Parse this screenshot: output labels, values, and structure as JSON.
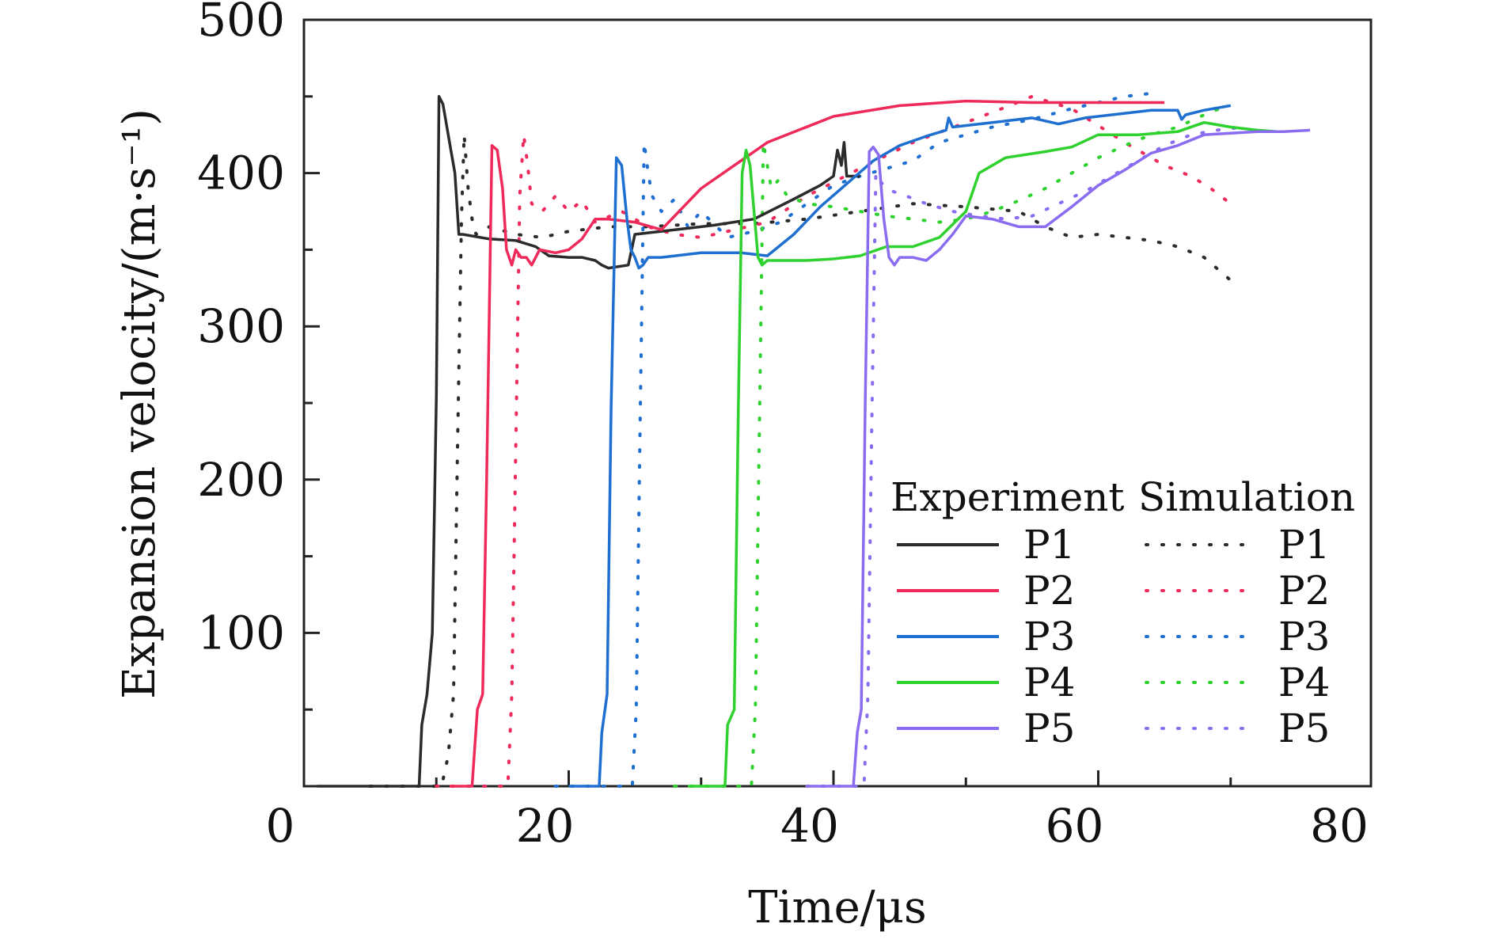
{
  "chart_data": {
    "type": "line",
    "xlabel": "Time/μs",
    "ylabel": "Expansion velocity/(m·s⁻¹)",
    "xlim": [
      0,
      80
    ],
    "ylim": [
      0,
      500
    ],
    "xticks": [
      0,
      20,
      40,
      60,
      80
    ],
    "yticks": [
      100,
      200,
      300,
      400,
      500
    ],
    "grid": false,
    "legend_position": "lower-right",
    "legend_headers": {
      "experiment": "Experiment",
      "simulation": "Simulation"
    },
    "colors": {
      "P1": "#2b2b2b",
      "P2": "#ee2a5a",
      "P3": "#1f6fd0",
      "P4": "#2ed12e",
      "P5": "#8a6cf0"
    },
    "series": [
      {
        "name": "P1",
        "group": "Experiment",
        "style": "solid",
        "x": [
          1,
          8.7,
          8.9,
          9.3,
          9.7,
          10,
          10.2,
          10.5,
          10.8,
          11.1,
          11.4,
          11.7,
          12,
          14,
          16,
          17.5,
          18.5,
          20,
          21,
          22,
          22.5,
          23,
          24.5,
          25,
          28,
          31,
          34,
          37,
          39,
          40,
          40.3,
          40.6,
          40.8,
          41,
          42
        ],
        "y": [
          0,
          0,
          40,
          60,
          100,
          255,
          450,
          445,
          430,
          415,
          400,
          360,
          360,
          357,
          356,
          352,
          346,
          345,
          345,
          343,
          340,
          338,
          340,
          360,
          363,
          366,
          370,
          383,
          392,
          398,
          415,
          405,
          420,
          398,
          398
        ]
      },
      {
        "name": "P2",
        "group": "Experiment",
        "style": "solid",
        "x": [
          11,
          12.7,
          13.1,
          13.5,
          13.8,
          14.2,
          14.6,
          15,
          15.3,
          15.7,
          16,
          16.4,
          16.8,
          17.2,
          17.8,
          19,
          20,
          21,
          22,
          23,
          25,
          27,
          30,
          35,
          40,
          45,
          50,
          55,
          60,
          65
        ],
        "y": [
          0,
          0,
          50,
          60,
          200,
          418,
          415,
          390,
          350,
          340,
          350,
          345,
          345,
          340,
          350,
          348,
          350,
          357,
          370,
          370,
          368,
          363,
          390,
          420,
          437,
          444,
          447,
          446,
          446,
          446
        ]
      },
      {
        "name": "P3",
        "group": "Experiment",
        "style": "solid",
        "x": [
          20,
          22.3,
          22.5,
          22.9,
          23.2,
          23.6,
          24,
          24.4,
          24.7,
          25,
          25.3,
          25.6,
          26,
          27,
          30,
          33,
          35,
          37,
          39,
          41,
          43,
          45,
          47,
          48.5,
          48.7,
          49,
          52,
          55,
          57,
          59,
          62,
          64,
          66,
          66.3,
          66.6,
          68,
          70
        ],
        "y": [
          0,
          0,
          35,
          60,
          245,
          410,
          405,
          370,
          350,
          345,
          338,
          340,
          345,
          345,
          348,
          348,
          346,
          360,
          378,
          393,
          408,
          418,
          424,
          428,
          436,
          430,
          433,
          436,
          432,
          436,
          439,
          441,
          441,
          435,
          438,
          441,
          444
        ]
      },
      {
        "name": "P4",
        "group": "Experiment",
        "style": "solid",
        "x": [
          29,
          31.8,
          32,
          32.5,
          32.8,
          33.1,
          33.4,
          33.7,
          34,
          34.3,
          34.6,
          35,
          36,
          38,
          40,
          42,
          44,
          46,
          48,
          50,
          51,
          53,
          56,
          58,
          60,
          63,
          66,
          68,
          70,
          72,
          73.5
        ],
        "y": [
          0,
          0,
          40,
          50,
          240,
          400,
          415,
          405,
          375,
          345,
          340,
          343,
          343,
          343,
          344,
          346,
          352,
          352,
          358,
          375,
          400,
          410,
          414,
          417,
          425,
          425,
          427,
          433,
          430,
          428,
          427
        ]
      },
      {
        "name": "P5",
        "group": "Experiment",
        "style": "solid",
        "x": [
          38,
          41.5,
          41.8,
          42.1,
          42.4,
          42.7,
          43,
          43.4,
          43.8,
          44.2,
          44.6,
          45,
          46,
          47,
          48,
          49,
          50,
          52,
          54,
          56,
          58,
          60,
          62,
          64,
          66,
          68,
          70,
          72,
          74,
          76
        ],
        "y": [
          0,
          0,
          35,
          50,
          250,
          414,
          417,
          412,
          370,
          345,
          340,
          345,
          345,
          343,
          350,
          360,
          372,
          370,
          365,
          365,
          378,
          392,
          402,
          413,
          418,
          425,
          426,
          427,
          427,
          428
        ]
      },
      {
        "name": "P1",
        "group": "Simulation",
        "style": "dotted",
        "x": [
          5,
          10.4,
          10.9,
          11.3,
          11.6,
          11.9,
          12.1,
          12.4,
          12.7,
          13,
          14,
          16,
          18,
          20,
          23,
          26,
          30,
          34,
          38,
          42,
          46,
          50,
          54,
          56,
          58,
          60,
          62,
          64,
          66,
          68,
          70
        ],
        "y": [
          0,
          0,
          20,
          60,
          220,
          370,
          425,
          390,
          370,
          360,
          365,
          360,
          358,
          362,
          365,
          365,
          367,
          367,
          370,
          375,
          380,
          378,
          375,
          365,
          358,
          360,
          358,
          356,
          352,
          345,
          330
        ]
      },
      {
        "name": "P2",
        "group": "Simulation",
        "style": "dotted",
        "x": [
          10,
          15.4,
          15.7,
          16,
          16.3,
          16.6,
          16.9,
          17.2,
          18,
          19,
          20,
          21,
          22,
          24,
          26,
          28,
          30,
          32,
          35,
          38,
          42,
          46,
          50,
          53,
          55,
          58,
          62,
          65,
          67,
          68.5,
          70
        ],
        "y": [
          0,
          0,
          60,
          220,
          385,
          425,
          405,
          380,
          375,
          385,
          375,
          382,
          368,
          375,
          365,
          360,
          358,
          362,
          368,
          385,
          403,
          420,
          433,
          443,
          450,
          442,
          420,
          405,
          398,
          390,
          380
        ]
      },
      {
        "name": "P3",
        "group": "Simulation",
        "style": "dotted",
        "x": [
          19,
          24.8,
          25.1,
          25.4,
          25.7,
          26,
          26.3,
          27,
          28,
          29,
          30,
          32,
          34,
          36,
          38,
          40,
          42,
          44,
          46,
          48,
          50,
          52,
          55,
          58,
          60,
          62,
          64
        ],
        "y": [
          0,
          0,
          50,
          240,
          420,
          400,
          385,
          375,
          383,
          365,
          375,
          358,
          362,
          368,
          380,
          392,
          398,
          403,
          408,
          420,
          425,
          430,
          435,
          442,
          446,
          450,
          452
        ]
      },
      {
        "name": "P4",
        "group": "Simulation",
        "style": "dotted",
        "x": [
          28,
          33.8,
          34.1,
          34.4,
          34.7,
          35,
          35.3,
          35.8,
          36.5,
          38,
          40,
          42,
          44,
          46,
          48,
          50,
          52,
          54,
          56,
          58,
          60,
          62,
          64,
          66,
          68,
          70
        ],
        "y": [
          0,
          0,
          50,
          230,
          420,
          405,
          390,
          395,
          385,
          380,
          378,
          375,
          372,
          370,
          368,
          370,
          375,
          382,
          390,
          400,
          410,
          418,
          425,
          430,
          438,
          445
        ]
      },
      {
        "name": "P5",
        "group": "Simulation",
        "style": "dotted",
        "x": [
          38,
          42.3,
          42.6,
          42.9,
          43.2,
          43.5,
          44,
          44.5,
          45.5,
          47,
          49,
          51,
          53,
          55,
          57,
          59,
          61,
          63,
          65,
          67,
          69,
          71
        ],
        "y": [
          0,
          0,
          60,
          240,
          400,
          395,
          390,
          388,
          385,
          380,
          375,
          372,
          370,
          372,
          380,
          388,
          398,
          408,
          418,
          425,
          428,
          430
        ]
      }
    ]
  }
}
